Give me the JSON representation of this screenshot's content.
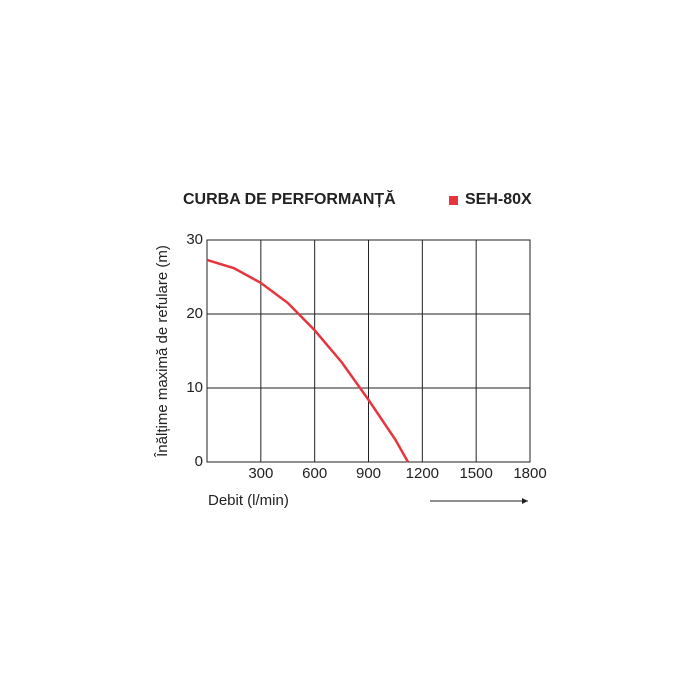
{
  "chart_data": {
    "type": "line",
    "title": "CURBA DE PERFORMANȚĂ",
    "x_label": "Debit (l/min)",
    "y_label": "Înălțime maximă de refulare (m)",
    "x": [
      0,
      150,
      300,
      450,
      600,
      750,
      900,
      1050,
      1120
    ],
    "series": [
      {
        "name": "SEH-80X",
        "color": "#e8353d",
        "values": [
          27.3,
          26.2,
          24.2,
          21.5,
          17.8,
          13.5,
          8.4,
          3.0,
          0
        ]
      }
    ],
    "xlim": [
      0,
      1800
    ],
    "ylim": [
      0,
      30
    ],
    "xticks": [
      300,
      600,
      900,
      1200,
      1500,
      1800
    ],
    "yticks": [
      0,
      10,
      20,
      30
    ],
    "grid": true
  }
}
